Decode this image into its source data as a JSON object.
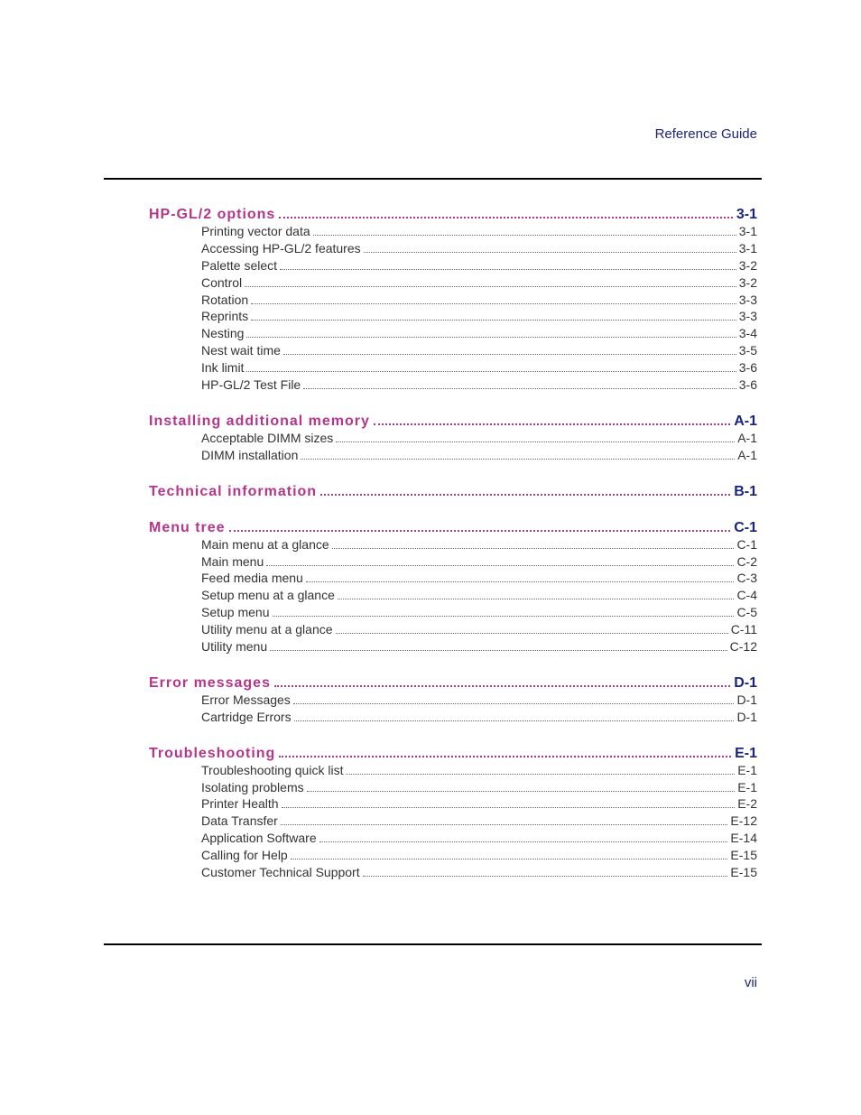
{
  "colors": {
    "section_title": "#b5358a",
    "section_page": "#1a237e",
    "header_text": "#1a237e",
    "page_number": "#1a237e",
    "entry_text": "#333333",
    "rule": "#000000",
    "background": "#ffffff"
  },
  "typography": {
    "header_fontsize": 15,
    "section_fontsize": 16,
    "entry_fontsize": 14,
    "pagenum_fontsize": 15,
    "font_family": "Arial, Helvetica, sans-serif"
  },
  "header": "Reference Guide",
  "page_number": "vii",
  "sections": [
    {
      "title": "HP-GL/2  options",
      "page": "3-1",
      "entries": [
        {
          "title": "Printing vector data",
          "page": "3-1"
        },
        {
          "title": "Accessing HP-GL/2 features",
          "page": "3-1"
        },
        {
          "title": "Palette select",
          "page": "3-2"
        },
        {
          "title": "Control",
          "page": "3-2"
        },
        {
          "title": "Rotation",
          "page": "3-3"
        },
        {
          "title": "Reprints",
          "page": "3-3"
        },
        {
          "title": "Nesting",
          "page": "3-4"
        },
        {
          "title": "Nest wait time",
          "page": "3-5"
        },
        {
          "title": "Ink limit",
          "page": "3-6"
        },
        {
          "title": "HP-GL/2 Test File",
          "page": "3-6"
        }
      ]
    },
    {
      "title": "Installing  additional  memory",
      "page": "A-1",
      "entries": [
        {
          "title": "Acceptable DIMM sizes",
          "page": "A-1"
        },
        {
          "title": "DIMM installation",
          "page": "A-1"
        }
      ]
    },
    {
      "title": "Technical  information",
      "page": "B-1",
      "entries": []
    },
    {
      "title": "Menu  tree",
      "page": "C-1",
      "entries": [
        {
          "title": "Main menu at a glance",
          "page": "C-1"
        },
        {
          "title": "Main menu",
          "page": "C-2"
        },
        {
          "title": "Feed media menu",
          "page": "C-3"
        },
        {
          "title": "Setup menu at a glance",
          "page": "C-4"
        },
        {
          "title": "Setup menu",
          "page": "C-5"
        },
        {
          "title": "Utility menu at a glance",
          "page": "C-11"
        },
        {
          "title": "Utility menu",
          "page": "C-12"
        }
      ]
    },
    {
      "title": "Error  messages",
      "page": "D-1",
      "entries": [
        {
          "title": "Error Messages",
          "page": "D-1"
        },
        {
          "title": "Cartridge Errors",
          "page": "D-1"
        }
      ]
    },
    {
      "title": "Troubleshooting",
      "page": "E-1",
      "entries": [
        {
          "title": "Troubleshooting quick list",
          "page": "E-1"
        },
        {
          "title": "Isolating problems",
          "page": "E-1"
        },
        {
          "title": "Printer Health",
          "page": "E-2"
        },
        {
          "title": "Data Transfer",
          "page": "E-12"
        },
        {
          "title": "Application Software",
          "page": "E-14"
        },
        {
          "title": "Calling for Help",
          "page": "E-15"
        },
        {
          "title": "Customer Technical Support",
          "page": "E-15"
        }
      ]
    }
  ]
}
